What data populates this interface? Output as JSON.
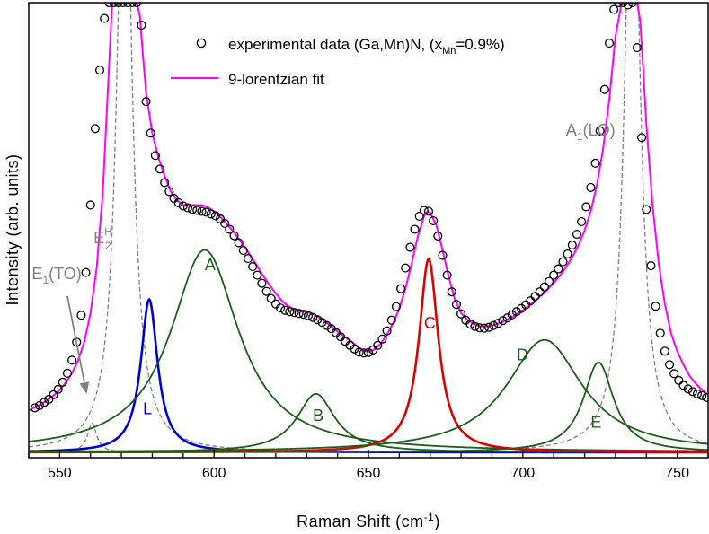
{
  "chart_data": {
    "type": "line",
    "xlabel": "Raman Shift (cm",
    "xlabel_sup": "-1",
    "xlabel_end": ")",
    "ylabel": "Intensity (arb. units)",
    "xlim": [
      540,
      760
    ],
    "ylim": [
      0,
      100
    ],
    "x_ticks": [
      550,
      600,
      650,
      700,
      750
    ],
    "grid": false,
    "legend_position": "top-right",
    "legend": [
      {
        "marker": "open-circle",
        "text": "experimental data (Ga,Mn)N, (x",
        "sub": "Mn",
        "text_end": "=0.9%)"
      },
      {
        "marker": "magenta-line",
        "text": "9-lorentzian fit"
      }
    ],
    "annotations": [
      {
        "label": "E",
        "sub": "1",
        "rest": "(TO)",
        "x": 541,
        "y": 38.5,
        "color": "#808080"
      },
      {
        "label": "E",
        "sub": "2",
        "sup": "H",
        "x": 561,
        "y": 46.5,
        "color": "#808080"
      },
      {
        "label": "A",
        "sub": "1",
        "rest": "(LO)",
        "x": 714,
        "y": 70.5,
        "color": "#808080"
      },
      {
        "label": "A",
        "x": 597,
        "y": 40.5,
        "color": "#1a5e1a"
      },
      {
        "label": "L",
        "x": 577,
        "y": 8.5,
        "color": "#0000dd"
      },
      {
        "label": "B",
        "x": 632,
        "y": 7.0,
        "color": "#1a5e1a"
      },
      {
        "label": "C",
        "x": 668,
        "y": 27.5,
        "color": "#dd0000"
      },
      {
        "label": "D",
        "x": 698,
        "y": 20.5,
        "color": "#1a5e1a"
      },
      {
        "label": "E",
        "x": 722,
        "y": 5.5,
        "color": "#1a5e1a"
      }
    ],
    "series": [
      {
        "name": "experimental data (Ga,Mn)N, (xMn=0.9%)",
        "kind": "scatter",
        "color": "#000000",
        "x": [
          542,
          543.5,
          545,
          546.5,
          548,
          549.5,
          551,
          552.5,
          554,
          555.5,
          557,
          558.5,
          560,
          561.5,
          563,
          564.5,
          566,
          567.5,
          569,
          570.5,
          572,
          573.5,
          575,
          576.5,
          578,
          579.5,
          581,
          582.5,
          584,
          585.5,
          587,
          588.5,
          590,
          591.5,
          593,
          594.5,
          596,
          597.5,
          599,
          600.5,
          602,
          603.5,
          605,
          606.5,
          608,
          609.5,
          611,
          612.5,
          614,
          615.5,
          617,
          618.5,
          620,
          621.5,
          623,
          624.5,
          626,
          627.5,
          629,
          630.5,
          632,
          633.5,
          635,
          636.5,
          638,
          639.5,
          641,
          642.5,
          644,
          645.5,
          647,
          648.5,
          650,
          651.5,
          653,
          654.5,
          656,
          657.5,
          659,
          660.5,
          662,
          663.5,
          665,
          666.5,
          668,
          669.5,
          671,
          672.5,
          674,
          675.5,
          677,
          678.5,
          680,
          681.5,
          683,
          684.5,
          686,
          687.5,
          689,
          690.5,
          692,
          693.5,
          695,
          696.5,
          698,
          699.5,
          701,
          702.5,
          704,
          705.5,
          707,
          708.5,
          710,
          711.5,
          713,
          714.5,
          716,
          717.5,
          719,
          720.5,
          722,
          723.5,
          725,
          726.5,
          728,
          729.5,
          731,
          732.5,
          734,
          735.5,
          737,
          738.5,
          740,
          741.5,
          743,
          744.5,
          746,
          747.5,
          749,
          750.5,
          752,
          753.5,
          755,
          756.5,
          758,
          759.5
        ],
        "y": [
          9.9,
          10.4,
          11.1,
          11.8,
          12.8,
          14.0,
          15.6,
          17.6,
          20.5,
          24.5,
          30.5,
          40.0,
          55.0,
          72.0,
          85.0,
          96.5,
          100,
          100,
          100,
          100,
          100,
          100,
          100,
          95.0,
          78.0,
          71.0,
          66.0,
          63.0,
          60.0,
          58.0,
          56.5,
          55.5,
          54.8,
          54.4,
          54.0,
          53.8,
          53.6,
          53.4,
          53.0,
          52.6,
          51.9,
          50.9,
          49.6,
          48.2,
          46.6,
          44.9,
          43.1,
          41.3,
          39.4,
          37.6,
          35.8,
          34.2,
          33.0,
          32.1,
          31.6,
          31.3,
          31.1,
          30.9,
          30.7,
          30.4,
          30.0,
          29.5,
          28.9,
          28.2,
          27.5,
          26.6,
          25.7,
          24.7,
          23.8,
          23.0,
          22.3,
          22.1,
          22.2,
          22.8,
          23.8,
          25.2,
          27.0,
          29.4,
          32.4,
          36.4,
          41.0,
          45.6,
          49.6,
          52.5,
          53.8,
          53.6,
          51.5,
          48.1,
          43.8,
          39.4,
          35.7,
          32.9,
          30.8,
          29.4,
          28.5,
          28.0,
          27.7,
          27.6,
          27.8,
          28.2,
          28.7,
          29.3,
          29.9,
          30.6,
          31.3,
          32.0,
          32.8,
          33.7,
          34.7,
          35.7,
          36.8,
          38.0,
          39.4,
          40.8,
          42.4,
          44.1,
          46.1,
          48.5,
          51.3,
          54.6,
          58.9,
          64.3,
          71.5,
          80.7,
          91.0,
          98.5,
          100,
          100,
          99.5,
          100,
          90.0,
          70.0,
          54.0,
          41.5,
          32.5,
          26.5,
          22.5,
          19.5,
          17.5,
          16.0,
          14.9,
          14.1,
          13.5,
          13.0,
          12.6,
          12.2
        ]
      },
      {
        "name": "9-lorentzian fit",
        "kind": "line",
        "color": "#ff00ff",
        "x": [
          540,
          542,
          544,
          546,
          548,
          550,
          552,
          554,
          556,
          558,
          560,
          562,
          564,
          566,
          567,
          568,
          569,
          570,
          571,
          572,
          573,
          574,
          575,
          576,
          577,
          578,
          580,
          582,
          584,
          586,
          588,
          590,
          592,
          594,
          596,
          598,
          600,
          602,
          604,
          606,
          608,
          610,
          612,
          614,
          616,
          618,
          620,
          622,
          624,
          626,
          628,
          630,
          632,
          634,
          636,
          638,
          640,
          642,
          644,
          646,
          648,
          650,
          652,
          654,
          656,
          658,
          660,
          662,
          664,
          666,
          668,
          669,
          670,
          672,
          674,
          676,
          678,
          680,
          682,
          684,
          686,
          688,
          690,
          692,
          694,
          696,
          698,
          700,
          702,
          704,
          706,
          708,
          710,
          712,
          714,
          716,
          718,
          720,
          722,
          724,
          726,
          728,
          730,
          732,
          733,
          734,
          735,
          736,
          737,
          738,
          739,
          740,
          742,
          744,
          746,
          748,
          750,
          752,
          754,
          756,
          758,
          760
        ],
        "y": [
          9.3,
          10.0,
          10.7,
          11.6,
          12.6,
          13.9,
          15.5,
          17.6,
          20.5,
          24.6,
          31.0,
          41.0,
          58.0,
          86.0,
          100,
          100,
          100,
          100,
          100,
          100,
          100,
          100,
          100,
          97.0,
          88.0,
          80.0,
          71.0,
          65.5,
          61.5,
          58.0,
          56.0,
          55.0,
          55.0,
          55.0,
          55.0,
          54.5,
          53.6,
          52.4,
          50.9,
          49.3,
          47.5,
          45.6,
          43.5,
          41.4,
          39.2,
          37.2,
          35.3,
          33.7,
          32.5,
          31.8,
          31.4,
          31.2,
          30.8,
          30.0,
          29.1,
          28.0,
          26.9,
          25.8,
          24.9,
          23.8,
          22.7,
          22.4,
          22.9,
          24.2,
          26.2,
          28.7,
          32.0,
          36.4,
          42.0,
          48.0,
          52.5,
          53.5,
          53.3,
          50.5,
          45.0,
          39.0,
          34.0,
          31.0,
          29.5,
          28.6,
          28.1,
          28.0,
          28.2,
          28.6,
          29.2,
          29.9,
          30.7,
          31.6,
          32.6,
          33.7,
          34.9,
          36.2,
          37.7,
          39.3,
          41.2,
          43.4,
          46.0,
          49.3,
          53.6,
          59.5,
          67.5,
          78.5,
          92.5,
          100,
          100,
          100,
          100,
          100,
          100,
          96.0,
          85.0,
          73.0,
          55.0,
          42.0,
          33.0,
          26.5,
          22.5,
          19.5,
          17.0,
          15.3,
          13.9,
          12.8
        ]
      },
      {
        "name": "E1(TO)",
        "kind": "line",
        "color": "#808080",
        "dashed": true,
        "component": {
          "x0": 560.5,
          "gamma": 1.8,
          "amp": 6.5
        }
      },
      {
        "name": "E2H",
        "kind": "line",
        "color": "#808080",
        "dashed": true,
        "component": {
          "x0": 571,
          "gamma": 2.8,
          "amp": 150
        }
      },
      {
        "name": "A1(LO)",
        "kind": "line",
        "color": "#808080",
        "dashed": true,
        "component": {
          "x0": 735.5,
          "gamma": 2.8,
          "amp": 150
        }
      },
      {
        "name": "L",
        "kind": "line",
        "color": "#0000dd",
        "component": {
          "x0": 579,
          "gamma": 3.3,
          "amp": 34
        }
      },
      {
        "name": "A",
        "kind": "line",
        "color": "#1a5e1a",
        "component": {
          "x0": 597,
          "gamma": 13.5,
          "amp": 45
        }
      },
      {
        "name": "B",
        "kind": "line",
        "color": "#1a5e1a",
        "component": {
          "x0": 633,
          "gamma": 7.5,
          "amp": 13
        }
      },
      {
        "name": "C",
        "kind": "line",
        "color": "#dd0000",
        "component": {
          "x0": 669.5,
          "gamma": 3.8,
          "amp": 43
        }
      },
      {
        "name": "D",
        "kind": "line",
        "color": "#1a5e1a",
        "component": {
          "x0": 707,
          "gamma": 15,
          "amp": 25
        }
      },
      {
        "name": "E",
        "kind": "line",
        "color": "#1a5e1a",
        "component": {
          "x0": 724.5,
          "gamma": 6,
          "amp": 20
        }
      }
    ]
  }
}
